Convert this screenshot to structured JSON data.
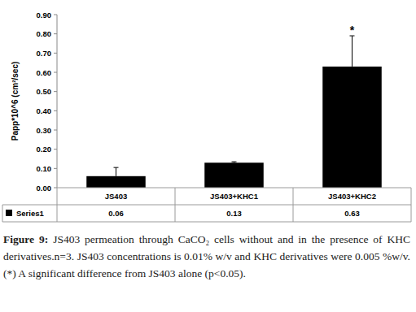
{
  "chart_data": {
    "type": "bar",
    "y_label": "Papp*10^6 (cm²/sec)",
    "categories": [
      "JS403",
      "JS403+KHC1",
      "JS403+KHC2"
    ],
    "series": [
      {
        "name": "Series1",
        "color": "#000000",
        "values": [
          0.06,
          0.13,
          0.63
        ],
        "errors": [
          0.045,
          0.005,
          0.16
        ]
      }
    ],
    "ylim": [
      0,
      0.9
    ],
    "yticks": [
      {
        "value": 0,
        "label": "0.00"
      },
      {
        "value": 0.1,
        "label": "0.10"
      },
      {
        "value": 0.2,
        "label": "0.20"
      },
      {
        "value": 0.3,
        "label": "0.30"
      },
      {
        "value": 0.4,
        "label": "0.40"
      },
      {
        "value": 0.5,
        "label": "0.50"
      },
      {
        "value": 0.6,
        "label": "0.60"
      },
      {
        "value": 0.7,
        "label": "0.70"
      },
      {
        "value": 0.8,
        "label": "0.80"
      },
      {
        "value": 0.9,
        "label": "0.90"
      }
    ],
    "grid": false,
    "data_labels": true,
    "annotations": [
      {
        "text": "*",
        "category": 2
      }
    ],
    "caption": {
      "label": "Figure 9:",
      "text": "JS403 permeation through CaCO₂ cells without and in the presence of KHC derivatives.n=3. JS403 concentrations is 0.01% w/v and KHC derivatives were 0.005 %w/v. (*) A significant difference from JS403 alone (p<0.05)."
    }
  }
}
